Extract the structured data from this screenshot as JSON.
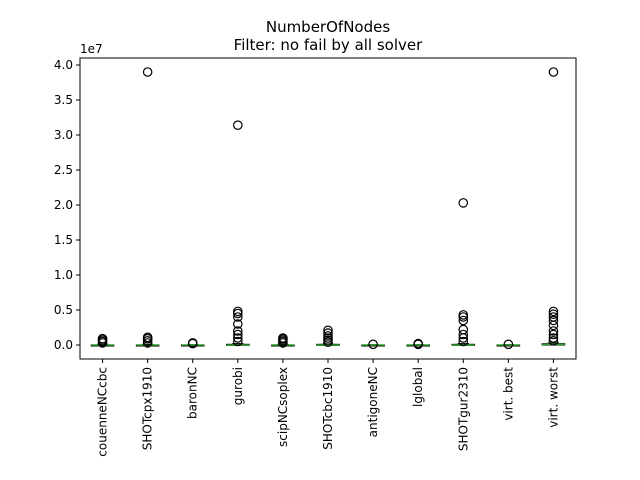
{
  "chart_data": {
    "type": "box",
    "title": "NumberOfNodes",
    "subtitle": "Filter: no fail by all solver",
    "xlabel": "",
    "ylabel": "",
    "y_offset_label": "1e7",
    "ylim": [
      -0.2,
      4.1
    ],
    "yticks": [
      0.0,
      0.5,
      1.0,
      1.5,
      2.0,
      2.5,
      3.0,
      3.5,
      4.0
    ],
    "ytick_labels": [
      "0.0",
      "0.5",
      "1.0",
      "1.5",
      "2.0",
      "2.5",
      "3.0",
      "3.5",
      "4.0"
    ],
    "y_units": "1e7",
    "categories": [
      "couenneNCcbc",
      "SHOTcpx1910",
      "baronNC",
      "gurobi",
      "scipNCsoplex",
      "SHOTcbc1910",
      "antigoneNC",
      "lglobal",
      "SHOTgur2310",
      "virt. best",
      "virt. worst"
    ],
    "box_color": "#000000",
    "median_color": "#2ca02c",
    "outlier_marker": "circle",
    "series": [
      {
        "q1": 0.0,
        "median": 0.0,
        "q3": 0.0,
        "whisker_low": 0.0,
        "whisker_high": 0.01,
        "outliers": [
          0.03,
          0.05,
          0.07,
          0.09
        ]
      },
      {
        "q1": 0.0,
        "median": 0.0,
        "q3": 0.0,
        "whisker_low": 0.0,
        "whisker_high": 0.01,
        "outliers": [
          0.03,
          0.06,
          0.09,
          0.11,
          3.9
        ]
      },
      {
        "q1": 0.0,
        "median": 0.0,
        "q3": 0.0,
        "whisker_low": 0.0,
        "whisker_high": 0.005,
        "outliers": [
          0.02,
          0.03
        ]
      },
      {
        "q1": 0.0,
        "median": 0.0,
        "q3": 0.01,
        "whisker_low": 0.0,
        "whisker_high": 0.02,
        "outliers": [
          0.05,
          0.1,
          0.15,
          0.2,
          0.3,
          0.4,
          0.45,
          0.48,
          3.14
        ]
      },
      {
        "q1": 0.0,
        "median": 0.0,
        "q3": 0.0,
        "whisker_low": 0.0,
        "whisker_high": 0.01,
        "outliers": [
          0.03,
          0.05,
          0.07,
          0.09,
          0.1
        ]
      },
      {
        "q1": 0.0,
        "median": 0.0,
        "q3": 0.01,
        "whisker_low": 0.0,
        "whisker_high": 0.015,
        "outliers": [
          0.04,
          0.07,
          0.1,
          0.13,
          0.17,
          0.21
        ]
      },
      {
        "q1": 0.0,
        "median": 0.0,
        "q3": 0.0,
        "whisker_low": 0.0,
        "whisker_high": 0.005,
        "outliers": [
          0.01
        ]
      },
      {
        "q1": 0.0,
        "median": 0.0,
        "q3": 0.0,
        "whisker_low": 0.0,
        "whisker_high": 0.005,
        "outliers": [
          0.01,
          0.02
        ]
      },
      {
        "q1": 0.0,
        "median": 0.0,
        "q3": 0.01,
        "whisker_low": 0.0,
        "whisker_high": 0.02,
        "outliers": [
          0.05,
          0.1,
          0.15,
          0.22,
          0.35,
          0.4,
          0.43,
          2.03
        ]
      },
      {
        "q1": 0.0,
        "median": 0.0,
        "q3": 0.0,
        "whisker_low": 0.0,
        "whisker_high": 0.005,
        "outliers": [
          0.01
        ]
      },
      {
        "q1": 0.0,
        "median": 0.01,
        "q3": 0.02,
        "whisker_low": 0.0,
        "whisker_high": 0.03,
        "outliers": [
          0.06,
          0.1,
          0.15,
          0.2,
          0.28,
          0.35,
          0.4,
          0.44,
          0.48,
          3.9
        ]
      }
    ]
  }
}
